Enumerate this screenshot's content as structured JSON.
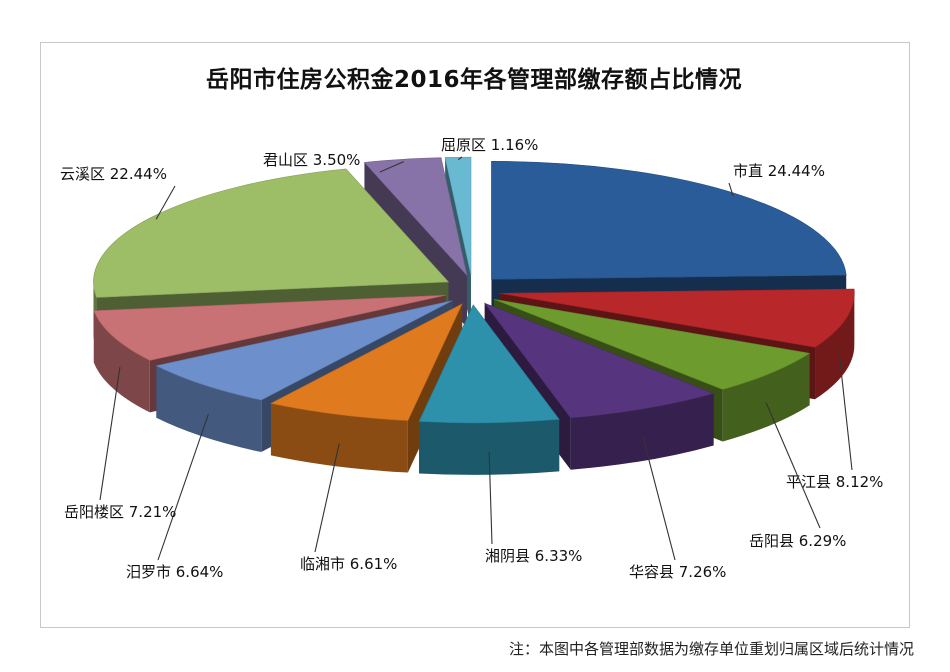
{
  "chart_data": {
    "type": "pie",
    "title": "岳阳市住房公积金2016年各管理部缴存额占比情况",
    "legend": "none",
    "slices": [
      {
        "label": "市直",
        "value": 24.44,
        "text": "市直 24.44%",
        "color": "#2a5c9a"
      },
      {
        "label": "平江县",
        "value": 8.12,
        "text": "平江县 8.12%",
        "color": "#b8282a"
      },
      {
        "label": "岳阳县",
        "value": 6.29,
        "text": "岳阳县 6.29%",
        "color": "#6e9b2e"
      },
      {
        "label": "华容县",
        "value": 7.26,
        "text": "华容县 7.26%",
        "color": "#57357e"
      },
      {
        "label": "湘阴县",
        "value": 6.33,
        "text": "湘阴县 6.33%",
        "color": "#2d91ac"
      },
      {
        "label": "临湘市",
        "value": 6.61,
        "text": "临湘市 6.61%",
        "color": "#e07a1e"
      },
      {
        "label": "汨罗市",
        "value": 6.64,
        "text": "汨罗市 6.64%",
        "color": "#6d8fcc"
      },
      {
        "label": "岳阳楼区",
        "value": 7.21,
        "text": "岳阳楼区 7.21%",
        "color": "#c97275"
      },
      {
        "label": "云溪区",
        "value": 22.44,
        "text": "云溪区 22.44%",
        "color": "#9dbd67"
      },
      {
        "label": "君山区",
        "value": 3.5,
        "text": "君山区 3.50%",
        "color": "#8873a8"
      },
      {
        "label": "屈原区",
        "value": 1.16,
        "text": "屈原区 1.16%",
        "color": "#6ab9d2"
      }
    ]
  },
  "footnote": "注：本图中各管理部数据为缴存单位重划归属区域后统计情况"
}
